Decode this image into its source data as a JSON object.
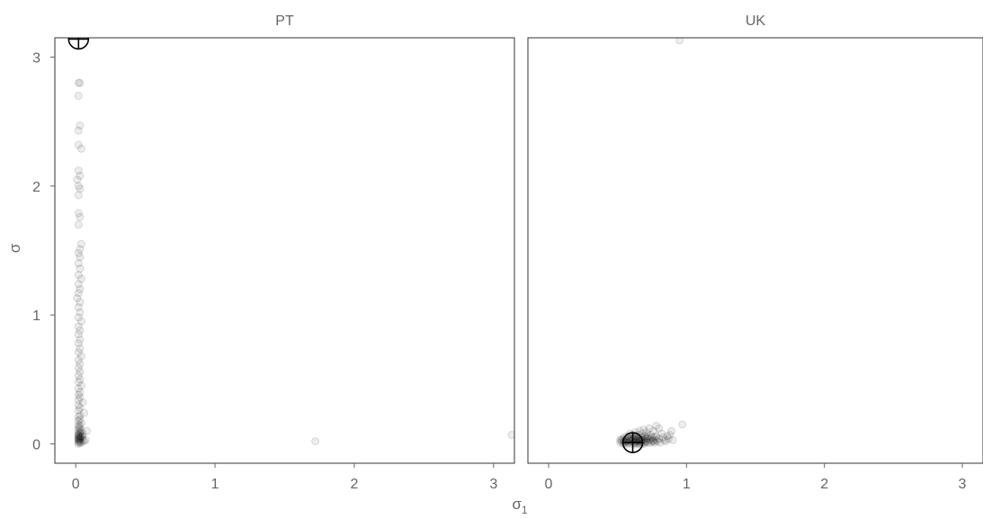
{
  "chart_data": {
    "type": "scatter",
    "xlabel": "σ",
    "xlabel_sub": "1",
    "ylabel": "σ",
    "xlim": [
      -0.15,
      3.15
    ],
    "ylim": [
      -0.15,
      3.15
    ],
    "xticks": [
      "0",
      "1",
      "2",
      "3"
    ],
    "yticks": [
      "0",
      "1",
      "2",
      "3"
    ],
    "panels": [
      {
        "title": "PT",
        "marker": {
          "x": 0.02,
          "y": 3.14
        },
        "points": [
          [
            0.02,
            2.8
          ],
          [
            0.03,
            2.8
          ],
          [
            0.02,
            2.7
          ],
          [
            0.03,
            2.47
          ],
          [
            0.02,
            2.43
          ],
          [
            0.02,
            2.32
          ],
          [
            0.04,
            2.29
          ],
          [
            0.02,
            2.12
          ],
          [
            0.03,
            2.08
          ],
          [
            0.01,
            2.05
          ],
          [
            0.02,
            2.0
          ],
          [
            0.03,
            1.98
          ],
          [
            0.02,
            1.93
          ],
          [
            0.02,
            1.79
          ],
          [
            0.03,
            1.76
          ],
          [
            0.02,
            1.7
          ],
          [
            0.04,
            1.55
          ],
          [
            0.03,
            1.51
          ],
          [
            0.02,
            1.48
          ],
          [
            0.03,
            1.45
          ],
          [
            0.02,
            1.4
          ],
          [
            0.03,
            1.36
          ],
          [
            0.02,
            1.31
          ],
          [
            0.04,
            1.28
          ],
          [
            0.02,
            1.24
          ],
          [
            0.03,
            1.2
          ],
          [
            0.02,
            1.17
          ],
          [
            0.01,
            1.13
          ],
          [
            0.03,
            1.1
          ],
          [
            0.02,
            1.06
          ],
          [
            0.03,
            1.02
          ],
          [
            0.02,
            0.98
          ],
          [
            0.04,
            0.95
          ],
          [
            0.02,
            0.91
          ],
          [
            0.03,
            0.88
          ],
          [
            0.02,
            0.85
          ],
          [
            0.03,
            0.81
          ],
          [
            0.02,
            0.78
          ],
          [
            0.03,
            0.74
          ],
          [
            0.02,
            0.71
          ],
          [
            0.04,
            0.68
          ],
          [
            0.02,
            0.65
          ],
          [
            0.03,
            0.62
          ],
          [
            0.02,
            0.59
          ],
          [
            0.03,
            0.56
          ],
          [
            0.02,
            0.53
          ],
          [
            0.03,
            0.5
          ],
          [
            0.02,
            0.48
          ],
          [
            0.04,
            0.45
          ],
          [
            0.02,
            0.43
          ],
          [
            0.03,
            0.4
          ],
          [
            0.02,
            0.38
          ],
          [
            0.03,
            0.36
          ],
          [
            0.02,
            0.34
          ],
          [
            0.05,
            0.32
          ],
          [
            0.02,
            0.3
          ],
          [
            0.03,
            0.28
          ],
          [
            0.02,
            0.26
          ],
          [
            0.06,
            0.24
          ],
          [
            0.03,
            0.22
          ],
          [
            0.02,
            0.21
          ],
          [
            0.03,
            0.19
          ],
          [
            0.02,
            0.18
          ],
          [
            0.04,
            0.16
          ],
          [
            0.02,
            0.15
          ],
          [
            0.03,
            0.14
          ],
          [
            0.02,
            0.13
          ],
          [
            0.03,
            0.12
          ],
          [
            0.02,
            0.11
          ],
          [
            0.04,
            0.1
          ],
          [
            0.02,
            0.09
          ],
          [
            0.03,
            0.08
          ],
          [
            0.02,
            0.07
          ],
          [
            0.03,
            0.06
          ],
          [
            0.02,
            0.06
          ],
          [
            0.04,
            0.05
          ],
          [
            0.02,
            0.05
          ],
          [
            0.03,
            0.04
          ],
          [
            0.02,
            0.04
          ],
          [
            0.05,
            0.03
          ],
          [
            0.02,
            0.03
          ],
          [
            0.03,
            0.02
          ],
          [
            0.02,
            0.02
          ],
          [
            0.06,
            0.02
          ],
          [
            0.03,
            0.01
          ],
          [
            0.02,
            0.01
          ],
          [
            0.04,
            0.01
          ],
          [
            0.02,
            0.0
          ],
          [
            0.08,
            0.1
          ],
          [
            0.07,
            0.03
          ],
          [
            0.05,
            0.08
          ],
          [
            0.03,
            0.09
          ],
          [
            0.02,
            0.07
          ],
          [
            0.04,
            0.06
          ],
          [
            0.03,
            0.05
          ],
          [
            0.02,
            0.04
          ],
          [
            0.05,
            0.06
          ],
          [
            0.03,
            0.03
          ],
          [
            1.72,
            0.02
          ],
          [
            3.13,
            0.07
          ]
        ]
      },
      {
        "title": "UK",
        "marker": {
          "x": 0.61,
          "y": 0.01
        },
        "points": [
          [
            0.95,
            3.13
          ],
          [
            0.97,
            0.15
          ],
          [
            0.89,
            0.1
          ],
          [
            0.88,
            0.07
          ],
          [
            0.9,
            0.03
          ],
          [
            0.86,
            0.06
          ],
          [
            0.84,
            0.03
          ],
          [
            0.82,
            0.08
          ],
          [
            0.8,
            0.12
          ],
          [
            0.78,
            0.14
          ],
          [
            0.77,
            0.05
          ],
          [
            0.76,
            0.1
          ],
          [
            0.75,
            0.02
          ],
          [
            0.74,
            0.07
          ],
          [
            0.73,
            0.12
          ],
          [
            0.72,
            0.04
          ],
          [
            0.71,
            0.09
          ],
          [
            0.7,
            0.01
          ],
          [
            0.7,
            0.06
          ],
          [
            0.69,
            0.11
          ],
          [
            0.68,
            0.03
          ],
          [
            0.68,
            0.08
          ],
          [
            0.67,
            0.0
          ],
          [
            0.67,
            0.05
          ],
          [
            0.66,
            0.1
          ],
          [
            0.66,
            0.02
          ],
          [
            0.65,
            0.07
          ],
          [
            0.65,
            0.04
          ],
          [
            0.64,
            0.0
          ],
          [
            0.64,
            0.06
          ],
          [
            0.63,
            0.02
          ],
          [
            0.63,
            0.09
          ],
          [
            0.62,
            0.04
          ],
          [
            0.62,
            0.01
          ],
          [
            0.61,
            0.07
          ],
          [
            0.61,
            0.03
          ],
          [
            0.6,
            0.0
          ],
          [
            0.6,
            0.05
          ],
          [
            0.59,
            0.02
          ],
          [
            0.59,
            0.08
          ],
          [
            0.58,
            0.01
          ],
          [
            0.58,
            0.04
          ],
          [
            0.57,
            0.0
          ],
          [
            0.57,
            0.06
          ],
          [
            0.56,
            0.02
          ],
          [
            0.56,
            0.03
          ],
          [
            0.55,
            0.01
          ],
          [
            0.55,
            0.05
          ],
          [
            0.54,
            0.0
          ],
          [
            0.54,
            0.03
          ],
          [
            0.53,
            0.02
          ],
          [
            0.53,
            0.04
          ],
          [
            0.52,
            0.01
          ],
          [
            0.52,
            0.03
          ],
          [
            0.62,
            0.06
          ],
          [
            0.63,
            0.05
          ],
          [
            0.64,
            0.03
          ],
          [
            0.65,
            0.01
          ],
          [
            0.66,
            0.04
          ],
          [
            0.67,
            0.02
          ],
          [
            0.68,
            0.05
          ],
          [
            0.69,
            0.03
          ],
          [
            0.7,
            0.02
          ],
          [
            0.71,
            0.05
          ],
          [
            0.72,
            0.01
          ],
          [
            0.73,
            0.03
          ],
          [
            0.74,
            0.01
          ],
          [
            0.75,
            0.05
          ],
          [
            0.76,
            0.03
          ],
          [
            0.77,
            0.01
          ],
          [
            0.78,
            0.06
          ],
          [
            0.79,
            0.02
          ],
          [
            0.8,
            0.04
          ],
          [
            0.81,
            0.01
          ],
          [
            0.83,
            0.05
          ],
          [
            0.85,
            0.02
          ],
          [
            0.87,
            0.04
          ],
          [
            0.6,
            0.02
          ],
          [
            0.61,
            0.04
          ],
          [
            0.62,
            0.0
          ],
          [
            0.63,
            0.01
          ],
          [
            0.64,
            0.02
          ],
          [
            0.65,
            0.03
          ],
          [
            0.58,
            0.03
          ],
          [
            0.59,
            0.04
          ],
          [
            0.57,
            0.02
          ],
          [
            0.56,
            0.01
          ],
          [
            0.55,
            0.02
          ],
          [
            0.66,
            0.0
          ],
          [
            0.67,
            0.03
          ],
          [
            0.68,
            0.01
          ],
          [
            0.69,
            0.0
          ],
          [
            0.7,
            0.04
          ],
          [
            0.71,
            0.02
          ],
          [
            0.72,
            0.06
          ],
          [
            0.74,
            0.04
          ],
          [
            0.76,
            0.02
          ],
          [
            0.78,
            0.03
          ]
        ]
      }
    ]
  }
}
